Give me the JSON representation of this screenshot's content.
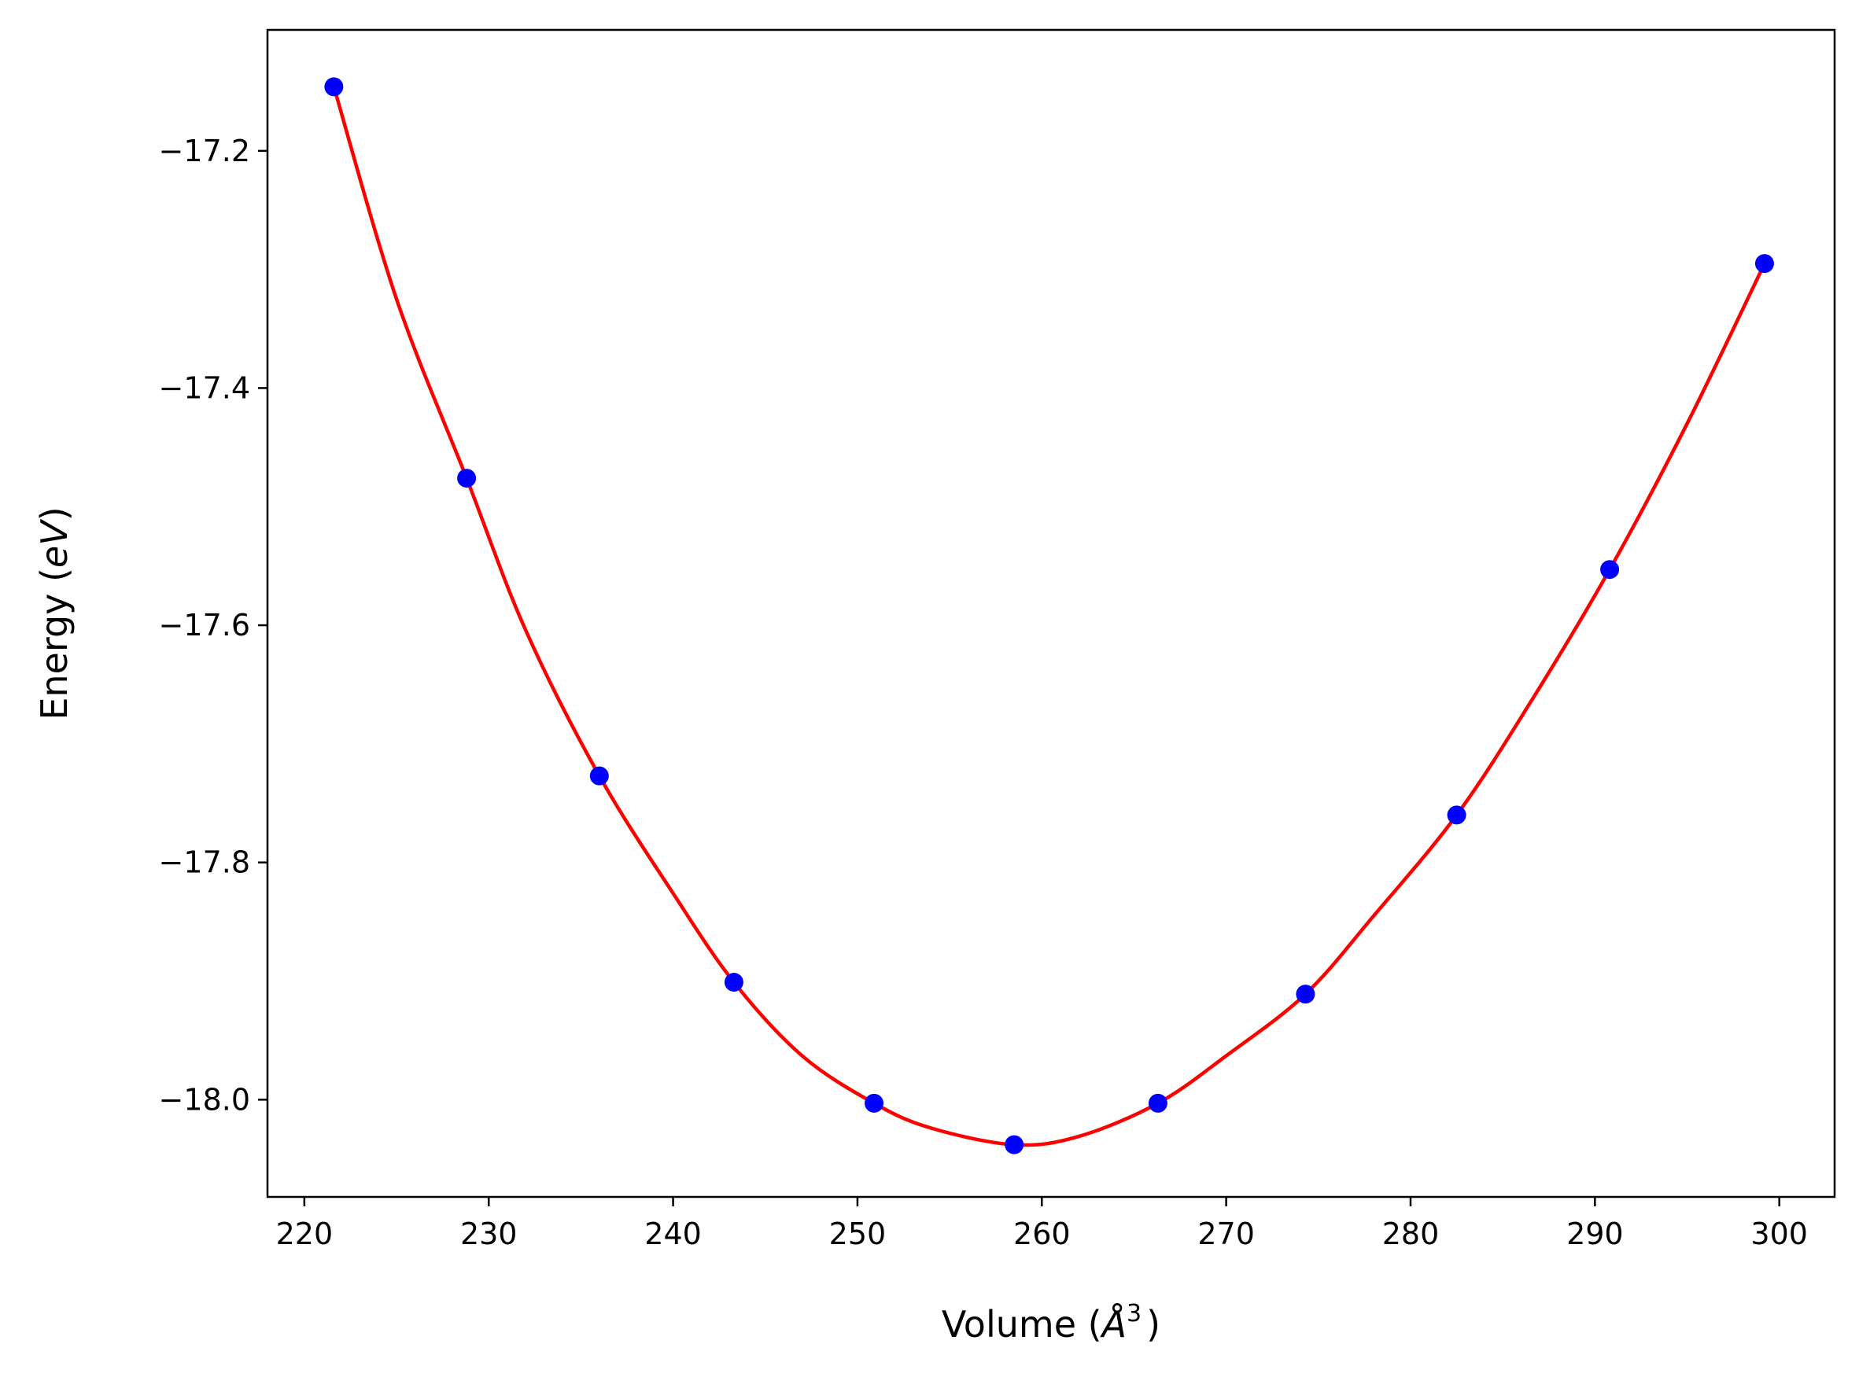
{
  "chart_data": {
    "type": "line",
    "title": "",
    "xlabel": {
      "main": "Volume (",
      "sym": "Å",
      "sup": "3",
      "end": ")"
    },
    "ylabel": {
      "main": "Energy (",
      "ital": "eV",
      "end": ")"
    },
    "xlim": [
      218,
      303
    ],
    "ylim": [
      -18.082,
      -17.098
    ],
    "xticks": [
      220,
      230,
      240,
      250,
      260,
      270,
      280,
      290,
      300
    ],
    "xtick_labels": [
      "220",
      "230",
      "240",
      "250",
      "260",
      "270",
      "280",
      "290",
      "300"
    ],
    "yticks": [
      -17.2,
      -17.4,
      -17.6,
      -17.8,
      -18.0
    ],
    "ytick_labels": [
      "−17.2",
      "−17.4",
      "−17.6",
      "−17.8",
      "−18.0"
    ],
    "grid": false,
    "series": [
      {
        "kind": "fit-line",
        "color": "#ff0000",
        "x": [
          221.6,
          225.0,
          228.8,
          232.0,
          236.0,
          240.0,
          243.3,
          247.0,
          250.9,
          254.0,
          258.5,
          262.0,
          266.3,
          270.0,
          274.3,
          278.0,
          282.5,
          286.5,
          290.8,
          295.0,
          299.2
        ],
        "y": [
          -17.146,
          -17.325,
          -17.476,
          -17.604,
          -17.727,
          -17.826,
          -17.901,
          -17.963,
          -18.003,
          -18.024,
          -18.038,
          -18.031,
          -18.003,
          -17.963,
          -17.911,
          -17.845,
          -17.76,
          -17.665,
          -17.553,
          -17.43,
          -17.295
        ]
      },
      {
        "kind": "points",
        "color": "#0000ff",
        "x": [
          221.6,
          228.8,
          236.0,
          243.3,
          250.9,
          258.5,
          266.3,
          274.3,
          282.5,
          290.8,
          299.2
        ],
        "y": [
          -17.146,
          -17.476,
          -17.727,
          -17.901,
          -18.003,
          -18.038,
          -18.003,
          -17.911,
          -17.76,
          -17.553,
          -17.295
        ]
      }
    ]
  }
}
